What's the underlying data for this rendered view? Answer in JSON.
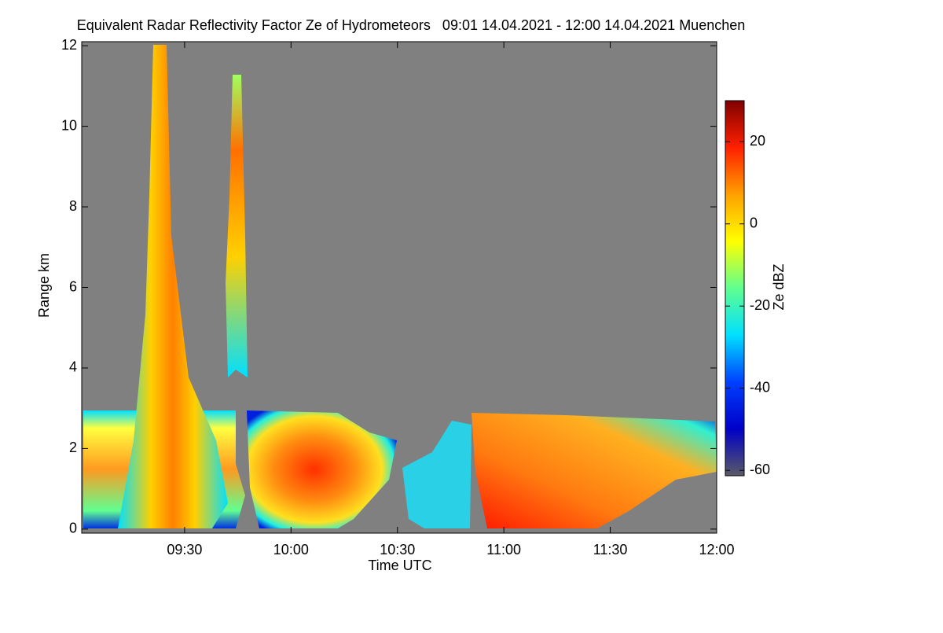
{
  "chart_data": {
    "type": "heatmap",
    "title": "Equivalent Radar Reflectivity Factor Ze of Hydrometeors   09:01 14.04.2021 - 12:00 14.04.2021 Muenchen",
    "x_label": "Time UTC",
    "y_label": "Range km",
    "xlim": [
      541,
      720
    ],
    "xticks": [
      {
        "value": 570,
        "label": "09:30"
      },
      {
        "value": 600,
        "label": "10:00"
      },
      {
        "value": 630,
        "label": "10:30"
      },
      {
        "value": 660,
        "label": "11:00"
      },
      {
        "value": 690,
        "label": "11:30"
      },
      {
        "value": 720,
        "label": "12:00"
      }
    ],
    "ylim": [
      -0.1,
      12.1
    ],
    "yticks": [
      0,
      2,
      4,
      6,
      8,
      10,
      12
    ],
    "colorbar": {
      "label": "Ze dBZ",
      "lim": [
        -61.3,
        30
      ],
      "ticks": [
        20,
        0,
        -20,
        -40,
        -60
      ],
      "colormap": [
        "#5a5a66",
        "#0000c8",
        "#0040ff",
        "#00e0ff",
        "#60ff90",
        "#ffff00",
        "#ffa000",
        "#ff2000",
        "#800000"
      ]
    },
    "background_color": "#808080"
  }
}
